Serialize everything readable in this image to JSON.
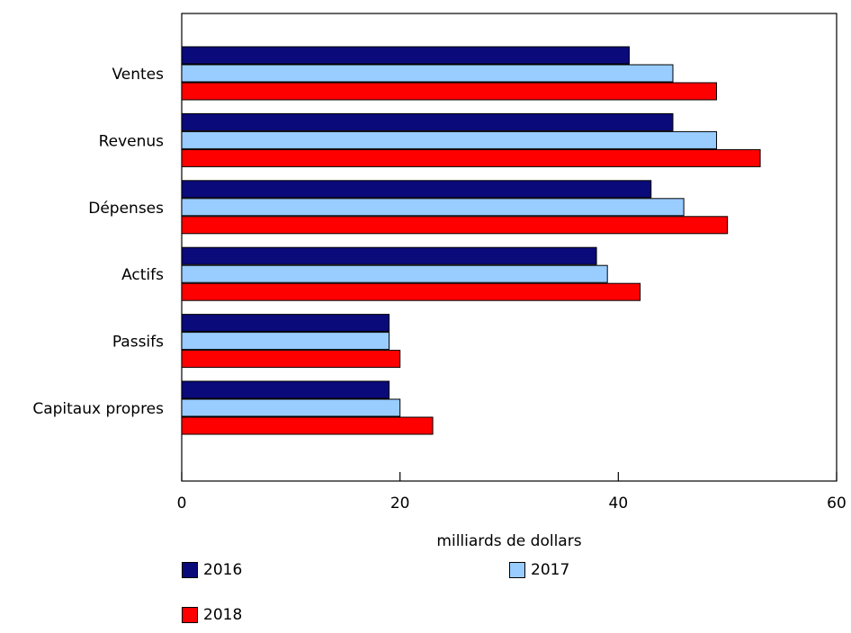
{
  "chart_data": {
    "type": "bar",
    "orientation": "horizontal",
    "categories": [
      "Ventes",
      "Revenus",
      "Dépenses",
      "Actifs",
      "Passifs",
      "Capitaux propres"
    ],
    "series": [
      {
        "name": "2016",
        "color": "#0a0a7a",
        "values": [
          41,
          45,
          43,
          38,
          19,
          19
        ]
      },
      {
        "name": "2017",
        "color": "#99ccff",
        "values": [
          45,
          49,
          46,
          39,
          19,
          20
        ]
      },
      {
        "name": "2018",
        "color": "#ff0000",
        "values": [
          49,
          53,
          50,
          42,
          20,
          23
        ]
      }
    ],
    "xlabel": "milliards de dollars",
    "xlim": [
      0,
      60
    ],
    "xticks": [
      "0",
      "20",
      "40",
      "60"
    ],
    "grid": false,
    "legend_position": "bottom"
  }
}
